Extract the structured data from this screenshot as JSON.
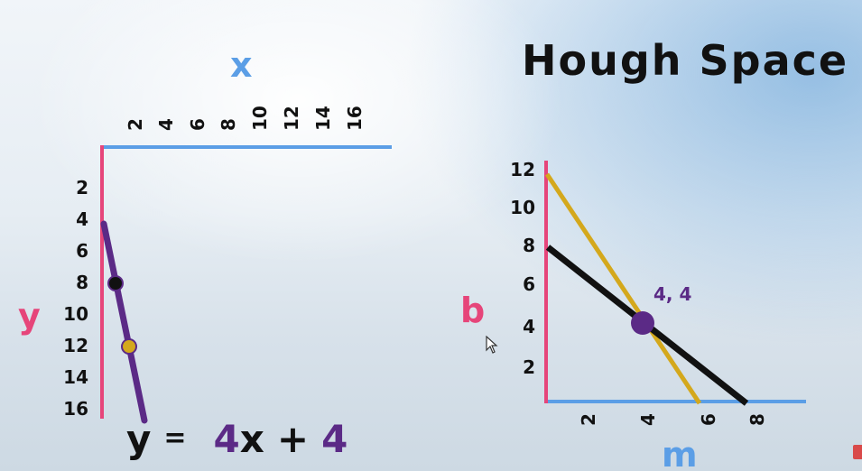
{
  "left_plot": {
    "x_axis_label": "x",
    "y_axis_label": "y",
    "x_ticks": [
      "2",
      "4",
      "6",
      "8",
      "10",
      "12",
      "14",
      "16"
    ],
    "y_ticks": [
      "2",
      "4",
      "6",
      "8",
      "10",
      "12",
      "14",
      "16"
    ],
    "equation": {
      "y": "y",
      "equals": "=",
      "slope": "4",
      "x": "x",
      "plus": "+",
      "intercept": "4"
    },
    "line_color": "#5b2a86",
    "point_colors": [
      "#111111",
      "#d4a81c"
    ]
  },
  "right_plot": {
    "title": "Hough Space",
    "m_axis_label": "m",
    "b_axis_label": "b",
    "m_ticks": [
      "2",
      "4",
      "6",
      "8"
    ],
    "b_ticks": [
      "2",
      "4",
      "6",
      "8",
      "10",
      "12"
    ],
    "intersection_label": "4, 4",
    "line_colors": [
      "#d4a81c",
      "#111111"
    ],
    "intersection_color": "#5b2a86"
  },
  "colors": {
    "x_axis": "#5b9ee6",
    "y_axis": "#e6457a",
    "axis_letter_x": "#5b9ee6",
    "axis_letter_y": "#e6457a"
  }
}
